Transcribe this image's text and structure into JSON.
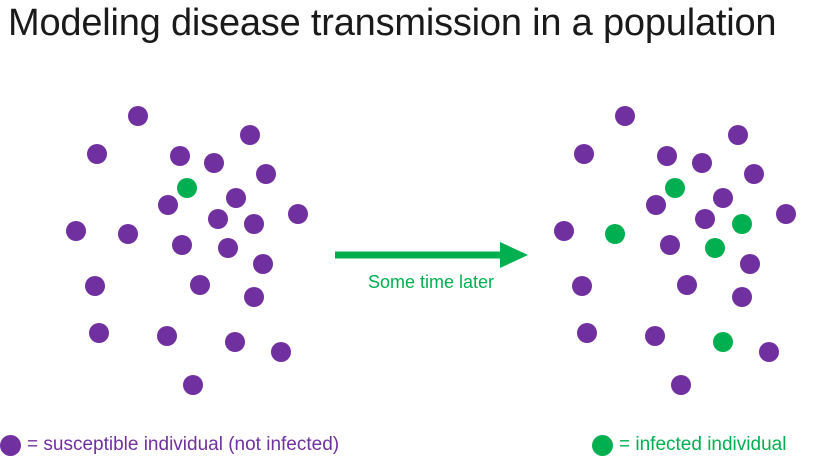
{
  "title": "Modeling disease transmission in a population",
  "arrow_caption": "Some time later",
  "legend": {
    "susceptible": "= susceptible individual (not infected)",
    "infected": "= infected individual"
  },
  "colors": {
    "susceptible": "#7030a0",
    "infected": "#00b050",
    "title": "#1a1a1a"
  },
  "populations": {
    "before": {
      "susceptible_count": 24,
      "infected_count": 1
    },
    "after": {
      "susceptible_count": 20,
      "infected_count": 5
    }
  }
}
